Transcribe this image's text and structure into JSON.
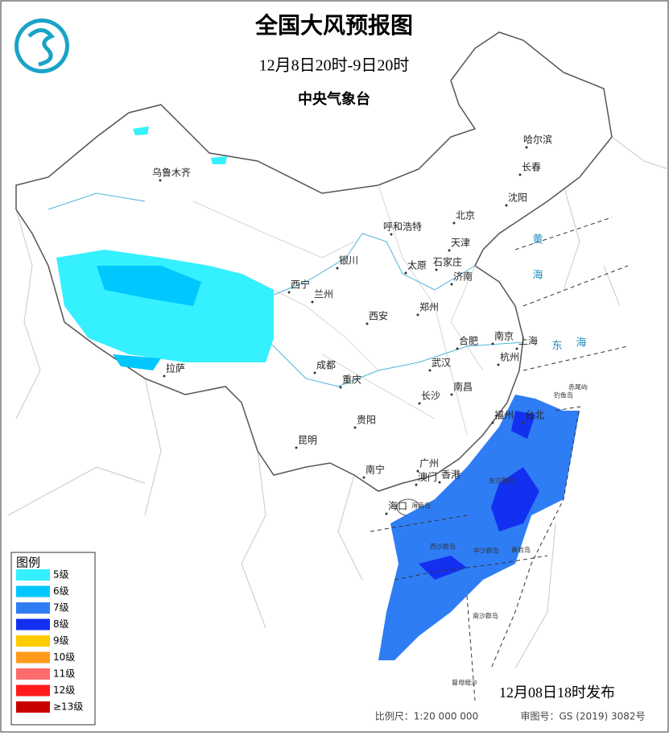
{
  "header": {
    "title": "全国大风预报图",
    "period": "12月8日20时-9日20时",
    "issuer": "中央气象台"
  },
  "legend": {
    "title": "图例",
    "levels": [
      {
        "label": "5级",
        "color": "#35f0ff"
      },
      {
        "label": "6级",
        "color": "#00c8ff"
      },
      {
        "label": "7级",
        "color": "#2f7df5"
      },
      {
        "label": "8级",
        "color": "#1330f0"
      },
      {
        "label": "9级",
        "color": "#ffcc00"
      },
      {
        "label": "10级",
        "color": "#ff9a1a"
      },
      {
        "label": "11级",
        "color": "#ff6b6b"
      },
      {
        "label": "12级",
        "color": "#ff1a1a"
      },
      {
        "label": "≥13级",
        "color": "#c80000"
      }
    ]
  },
  "cities": [
    "乌鲁木齐",
    "哈尔滨",
    "长春",
    "沈阳",
    "北京",
    "呼和浩特",
    "天津",
    "银川",
    "太原",
    "石家庄",
    "济南",
    "西宁",
    "兰州",
    "郑州",
    "西安",
    "南京",
    "合肥",
    "上海",
    "武汉",
    "杭州",
    "成都",
    "重庆",
    "南昌",
    "长沙",
    "拉萨",
    "贵阳",
    "福州",
    "台北",
    "昆明",
    "南宁",
    "广州",
    "香港",
    "澳门",
    "海口"
  ],
  "islands": [
    "海南岛",
    "东沙群岛",
    "西沙群岛",
    "中沙群岛",
    "黄岩岛",
    "南沙群岛",
    "钓鱼岛",
    "赤尾屿",
    "曾母暗沙"
  ],
  "seas": [
    "黄",
    "海",
    "东",
    "海"
  ],
  "footer": {
    "issued": "12月08日18时发布",
    "scale": "比例尺：1:20 000 000",
    "map_number": "审图号：GS (2019) 3082号"
  }
}
